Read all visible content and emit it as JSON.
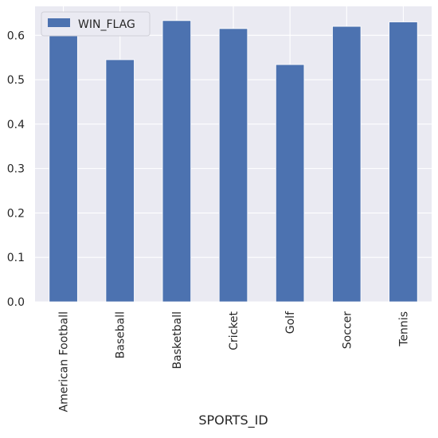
{
  "chart_data": {
    "type": "bar",
    "xlabel": "SPORTS_ID",
    "ylabel": "",
    "categories": [
      "American Football",
      "Baseball",
      "Basketball",
      "Cricket",
      "Golf",
      "Soccer",
      "Tennis"
    ],
    "series": [
      {
        "name": "WIN_FLAG",
        "color": "#4c72b0",
        "values": [
          0.611,
          0.545,
          0.633,
          0.615,
          0.534,
          0.62,
          0.63
        ]
      }
    ],
    "ylim": [
      0,
      0.665
    ],
    "yticks": [
      0.0,
      0.1,
      0.2,
      0.3,
      0.4,
      0.5,
      0.6
    ],
    "ytick_labels": [
      "0.0",
      "0.1",
      "0.2",
      "0.3",
      "0.4",
      "0.5",
      "0.6"
    ],
    "grid": true,
    "legend_position": "top-left",
    "plot_background": "#eaeaf2",
    "grid_color": "#ffffff"
  }
}
